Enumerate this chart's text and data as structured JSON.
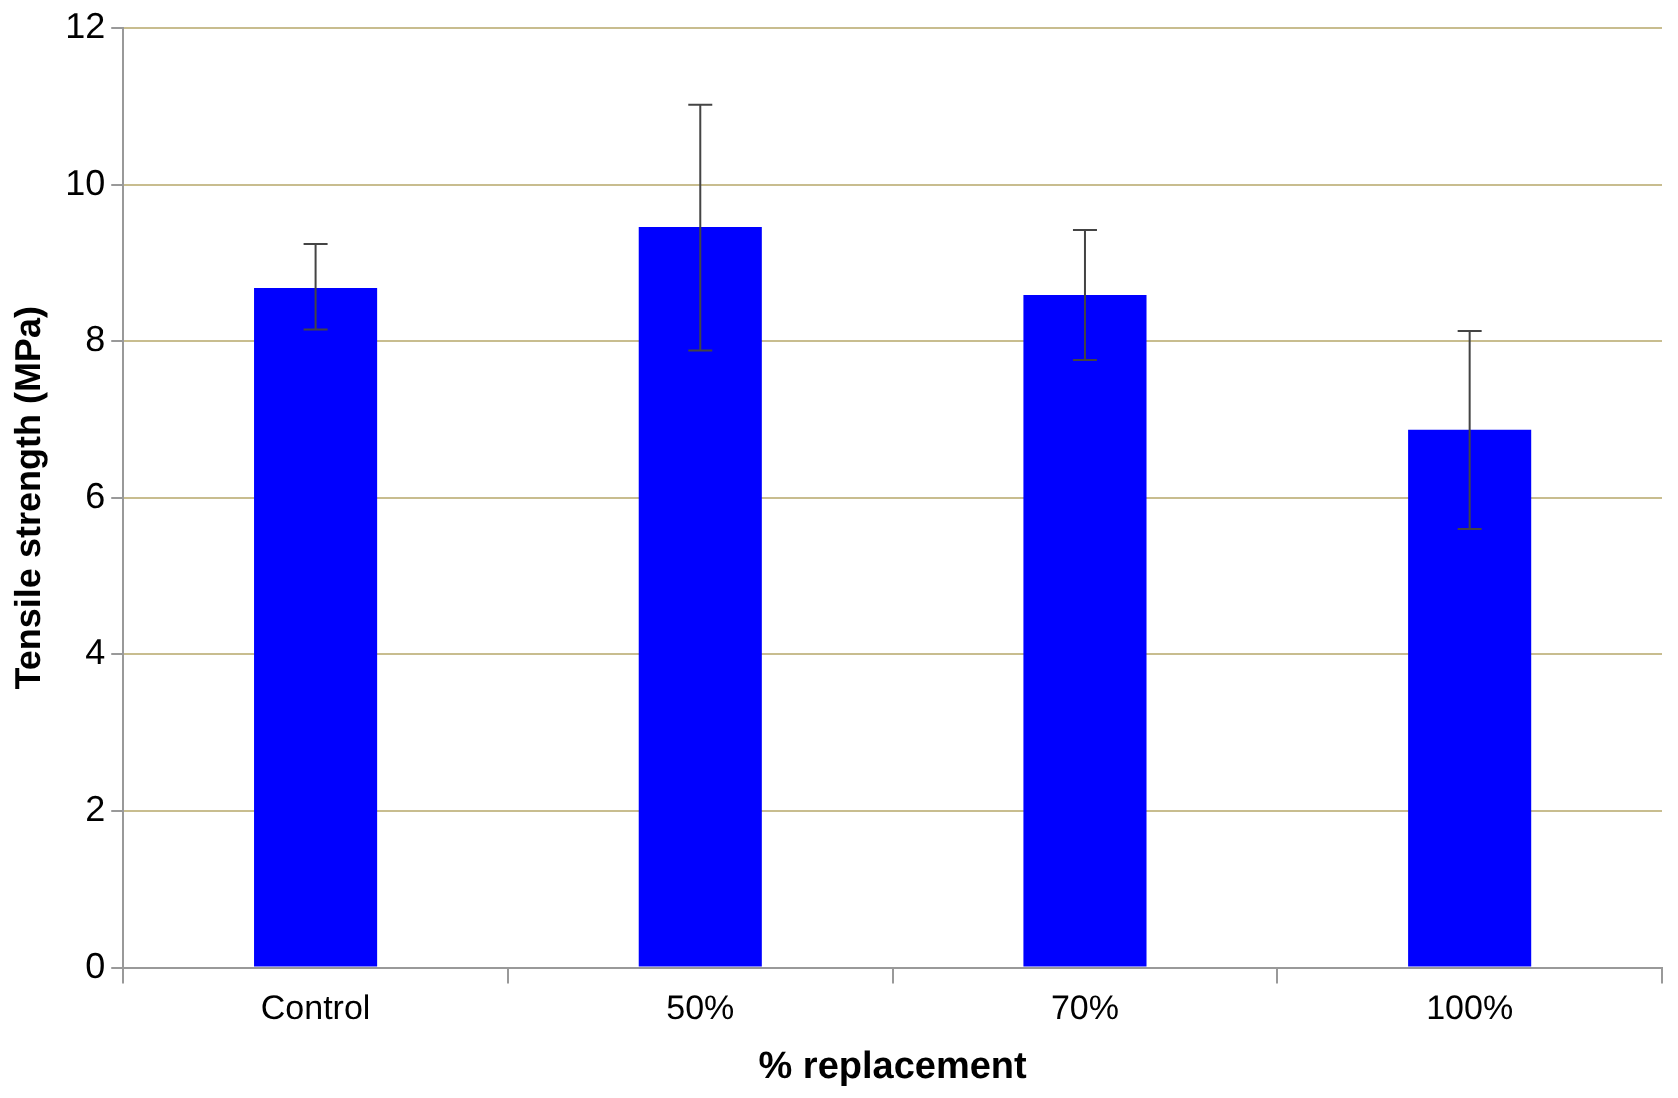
{
  "chart_data": {
    "type": "bar",
    "xlabel": "% replacement",
    "ylabel": "Tensile strength (MPa)",
    "categories": [
      "Control",
      "50%",
      "70%",
      "100%"
    ],
    "values": [
      8.68,
      9.46,
      8.59,
      6.87
    ],
    "errors": [
      [
        8.15,
        9.24
      ],
      [
        7.88,
        11.02
      ],
      [
        7.76,
        9.42
      ],
      [
        5.6,
        8.13
      ]
    ],
    "color": "#0000ff",
    "ylim": [
      0,
      12
    ],
    "yticks": [
      0,
      2,
      4,
      6,
      8,
      10,
      12
    ],
    "grid": "y",
    "legend": false
  }
}
